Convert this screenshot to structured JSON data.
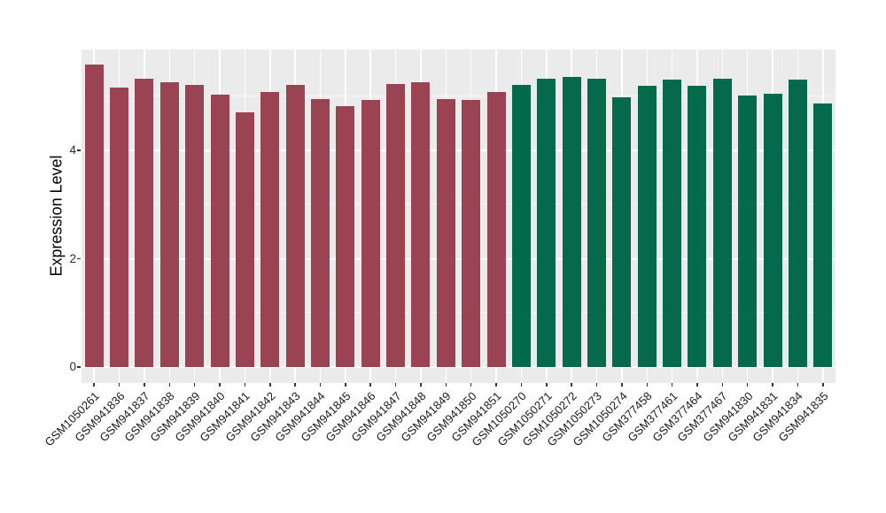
{
  "chart_data": {
    "type": "bar",
    "title": "",
    "xlabel": "",
    "ylabel": "Expression Level",
    "ylim": [
      0,
      5.86
    ],
    "yticks": [
      0,
      2,
      4
    ],
    "yticks_minor": [
      1,
      3,
      5
    ],
    "grid": true,
    "legend": false,
    "panel_background": "#ebebeb",
    "gridline_color": "#ffffff",
    "group_colors": [
      "#9a4353",
      "#05694b"
    ],
    "categories": [
      "GSM1050261",
      "GSM941836",
      "GSM941837",
      "GSM941838",
      "GSM941839",
      "GSM941840",
      "GSM941841",
      "GSM941842",
      "GSM941843",
      "GSM941844",
      "GSM941845",
      "GSM941846",
      "GSM941847",
      "GSM941848",
      "GSM941849",
      "GSM941850",
      "GSM941851",
      "GSM1050270",
      "GSM1050271",
      "GSM1050272",
      "GSM1050273",
      "GSM1050274",
      "GSM377458",
      "GSM377461",
      "GSM377464",
      "GSM377467",
      "GSM941830",
      "GSM941831",
      "GSM941834",
      "GSM941835"
    ],
    "values": [
      5.58,
      5.16,
      5.32,
      5.25,
      5.21,
      5.03,
      4.71,
      5.08,
      5.21,
      4.94,
      4.82,
      4.93,
      5.22,
      5.26,
      4.94,
      4.93,
      5.07,
      5.21,
      5.32,
      5.36,
      5.33,
      4.98,
      5.19,
      5.3,
      5.19,
      5.33,
      5.01,
      5.05,
      5.3,
      4.86
    ],
    "color_index": [
      0,
      0,
      0,
      0,
      0,
      0,
      0,
      0,
      0,
      0,
      0,
      0,
      0,
      0,
      0,
      0,
      0,
      1,
      1,
      1,
      1,
      1,
      1,
      1,
      1,
      1,
      1,
      1,
      1,
      1
    ]
  }
}
